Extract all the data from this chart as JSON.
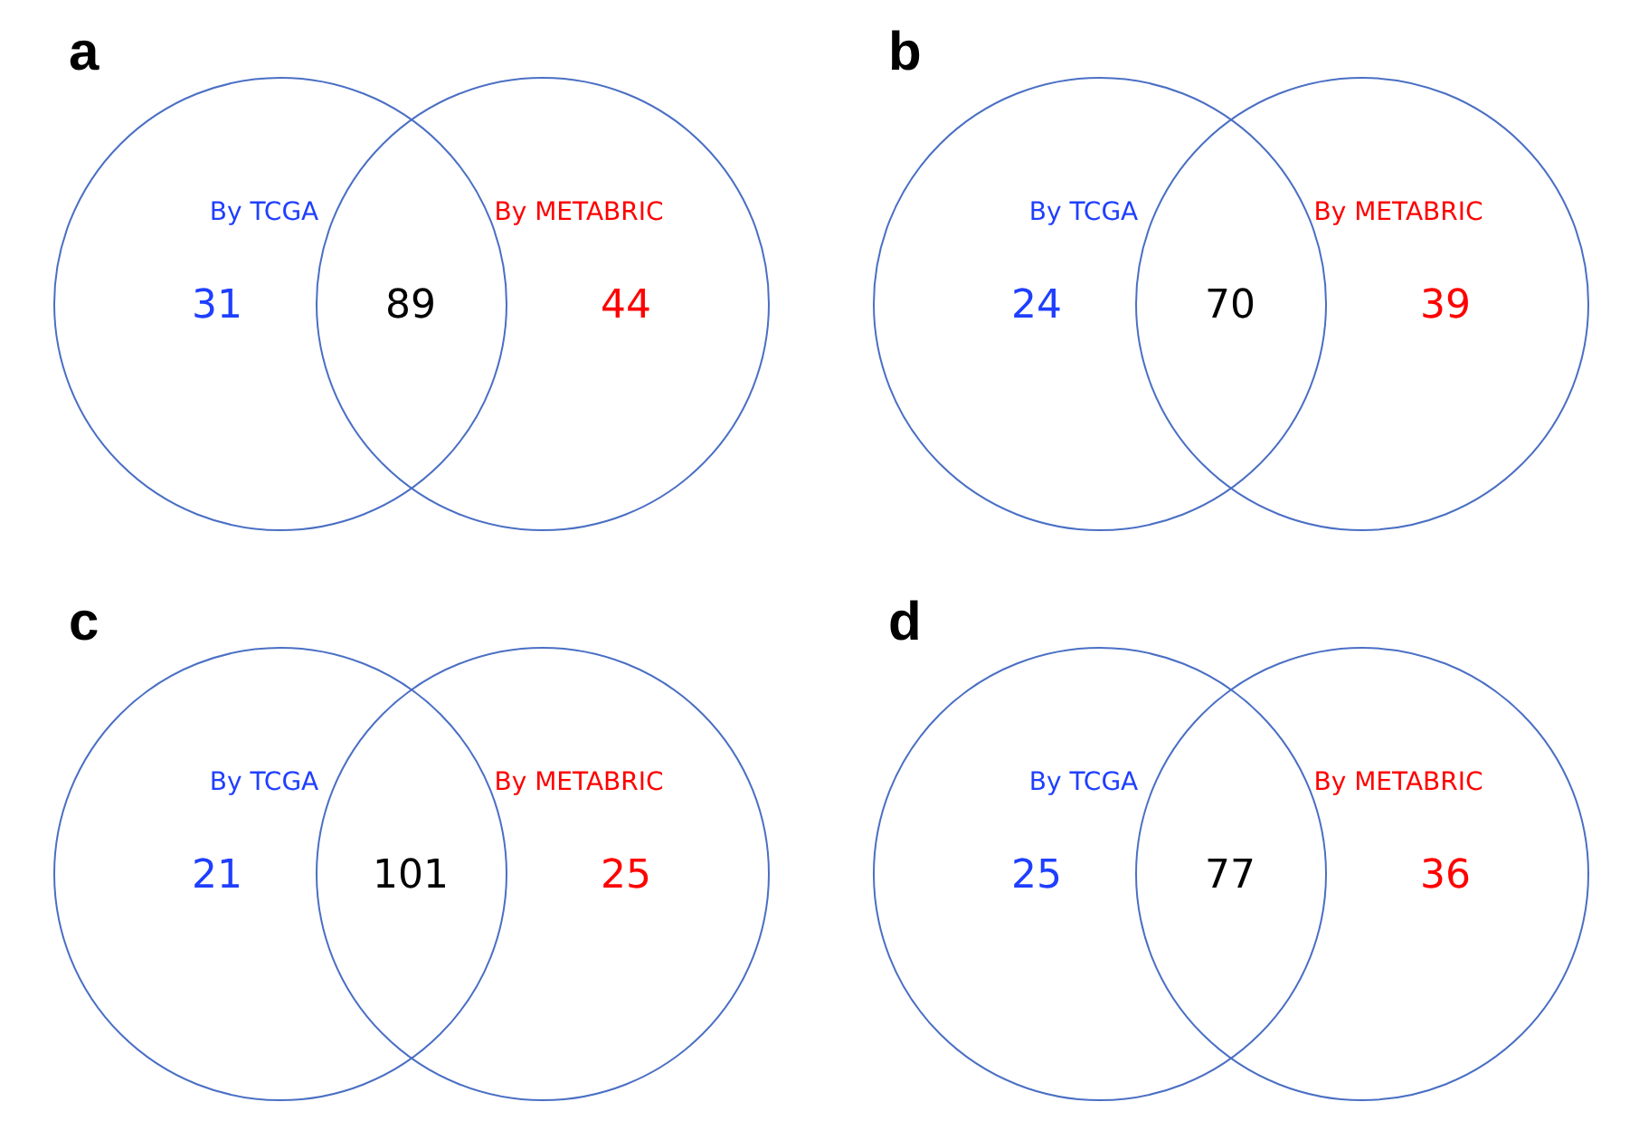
{
  "chart_data": [
    {
      "type": "other",
      "title": "a",
      "categories": [
        "By TCGA",
        null,
        "By METABRIC"
      ],
      "values": [
        31,
        89,
        44
      ],
      "data_labels": true,
      "colors": [
        "#1f3fff",
        "#000000",
        "#ff0000"
      ]
    },
    {
      "type": "other",
      "title": "b",
      "categories": [
        "By TCGA",
        null,
        "By METABRIC"
      ],
      "values": [
        24,
        70,
        39
      ],
      "data_labels": true,
      "colors": [
        "#1f3fff",
        "#000000",
        "#ff0000"
      ]
    },
    {
      "type": "other",
      "title": "c",
      "categories": [
        "By TCGA",
        null,
        "By METABRIC"
      ],
      "values": [
        21,
        101,
        25
      ],
      "data_labels": true,
      "colors": [
        "#1f3fff",
        "#000000",
        "#ff0000"
      ]
    },
    {
      "type": "other",
      "title": "d",
      "categories": [
        "By TCGA",
        null,
        "By METABRIC"
      ],
      "values": [
        25,
        77,
        36
      ],
      "data_labels": true,
      "colors": [
        "#1f3fff",
        "#000000",
        "#ff0000"
      ]
    }
  ]
}
